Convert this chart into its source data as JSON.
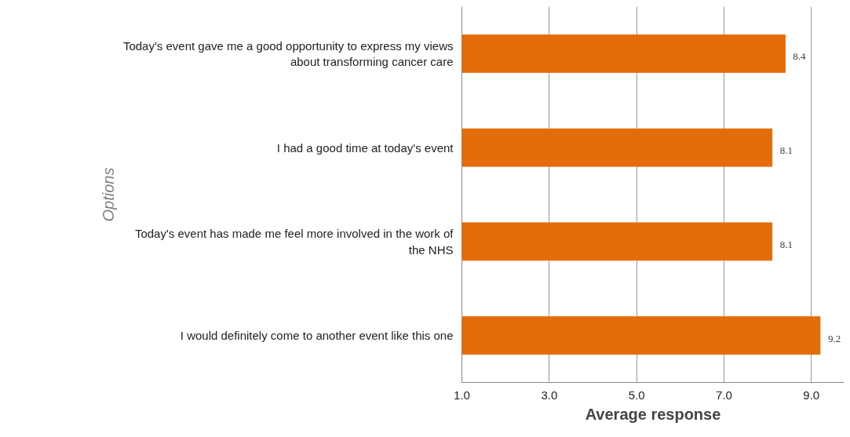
{
  "chart_data": {
    "type": "bar",
    "orientation": "horizontal",
    "xlabel": "Average response",
    "ylabel": "Options",
    "categories": [
      "Today's event gave me a good opportunity to express my views about transforming cancer care",
      "I had a good time at today's event",
      "Today's event has made me feel more involved in the work of the NHS",
      "I would definitely come to another event like this one"
    ],
    "values": [
      8.4,
      8.1,
      8.1,
      9.2
    ],
    "color": "#e46c0a",
    "data_labels": true,
    "xlim": [
      1,
      9.75
    ],
    "xticks": [
      {
        "value": 1,
        "label": "1.0"
      },
      {
        "value": 3,
        "label": "3.0"
      },
      {
        "value": 5,
        "label": "5.0"
      },
      {
        "value": 7,
        "label": "7.0"
      },
      {
        "value": 9,
        "label": "9.0"
      }
    ],
    "grid": "x"
  }
}
